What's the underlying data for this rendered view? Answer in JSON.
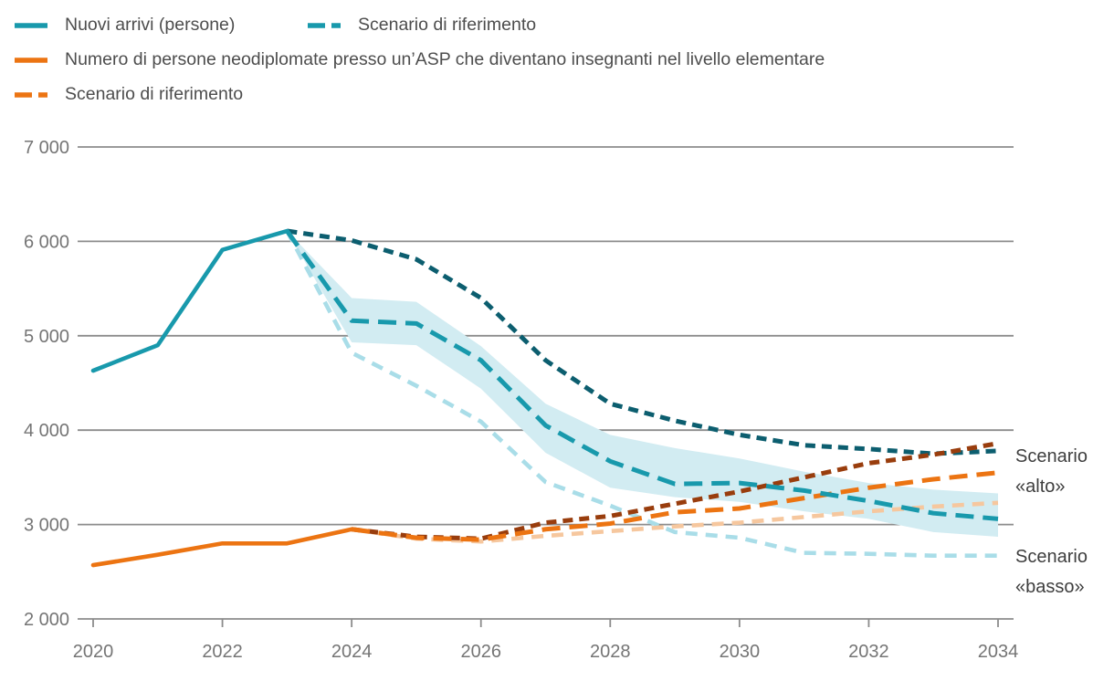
{
  "legend": {
    "items": [
      {
        "label": "Nuovi arrivi (persone)",
        "color": "#1899ac",
        "swatch": "solid"
      },
      {
        "label": "Scenario di riferimento",
        "color": "#1899ac",
        "swatch": "dashed"
      },
      {
        "label": "Numero di persone neodiplomate presso un’ASP che diventano insegnanti nel livello elementare",
        "color": "#ec7412",
        "swatch": "solid"
      },
      {
        "label": "Scenario di riferimento",
        "color": "#ec7412",
        "swatch": "dashed"
      }
    ]
  },
  "annotations": {
    "alto": "Scenario «alto»",
    "basso": "Scenario «basso»"
  },
  "chart_data": {
    "type": "line",
    "title": "",
    "xlabel": "",
    "ylabel": "",
    "xlim": [
      2020,
      2034
    ],
    "ylim": [
      2000,
      7000
    ],
    "grid": "horizontal",
    "yticks": [
      {
        "value": 2000,
        "label": "2 000"
      },
      {
        "value": 3000,
        "label": "3 000"
      },
      {
        "value": 4000,
        "label": "4 000"
      },
      {
        "value": 5000,
        "label": "5 000"
      },
      {
        "value": 6000,
        "label": "6 000"
      },
      {
        "value": 7000,
        "label": "7 000"
      }
    ],
    "xticks": [
      {
        "value": 2020,
        "label": "2020"
      },
      {
        "value": 2022,
        "label": "2022"
      },
      {
        "value": 2024,
        "label": "2024"
      },
      {
        "value": 2026,
        "label": "2026"
      },
      {
        "value": 2028,
        "label": "2028"
      },
      {
        "value": 2030,
        "label": "2030"
      },
      {
        "value": 2032,
        "label": "2032"
      },
      {
        "value": 2034,
        "label": "2034"
      }
    ],
    "band": {
      "name": "confidence-band-nuovi-arrivi",
      "color": "#d2ecf2",
      "x": [
        2023,
        2024,
        2025,
        2026,
        2027,
        2028,
        2029,
        2030,
        2031,
        2032,
        2033,
        2034
      ],
      "upper": [
        6110,
        5400,
        5360,
        4890,
        4280,
        3950,
        3810,
        3700,
        3560,
        3440,
        3370,
        3330
      ],
      "lower": [
        6110,
        4930,
        4900,
        4440,
        3760,
        3390,
        3290,
        3240,
        3140,
        3060,
        2920,
        2870
      ]
    },
    "series": [
      {
        "id": "nuovi-arrivi-scenario-basso",
        "name": "Nuovi arrivi – Scenario «basso»",
        "color": "#a9dde8",
        "style": "dotted-light",
        "x": [
          2023,
          2024,
          2025,
          2026,
          2027,
          2028,
          2029,
          2030,
          2031,
          2032,
          2033,
          2034
        ],
        "y": [
          6110,
          4820,
          4470,
          4090,
          3450,
          3200,
          2920,
          2860,
          2700,
          2690,
          2670,
          2670
        ]
      },
      {
        "id": "neodiplomate-scenario-basso",
        "name": "Neodiplomate – Scenario «basso»",
        "color": "#f6c79e",
        "style": "dotted-light",
        "x": [
          2024,
          2025,
          2026,
          2027,
          2028,
          2029,
          2030,
          2031,
          2032,
          2033,
          2034
        ],
        "y": [
          2950,
          2850,
          2820,
          2880,
          2930,
          2980,
          3020,
          3080,
          3140,
          3190,
          3230
        ]
      },
      {
        "id": "nuovi-arrivi-scenario-alto",
        "name": "Nuovi arrivi – Scenario «alto»",
        "color": "#0c5e6f",
        "style": "dotted",
        "x": [
          2023,
          2024,
          2025,
          2026,
          2027,
          2028,
          2029,
          2030,
          2031,
          2032,
          2033,
          2034
        ],
        "y": [
          6110,
          6010,
          5810,
          5400,
          4740,
          4280,
          4100,
          3950,
          3840,
          3800,
          3750,
          3780
        ]
      },
      {
        "id": "neodiplomate-scenario-alto",
        "name": "Neodiplomate – Scenario «alto»",
        "color": "#993d0d",
        "style": "dotted",
        "x": [
          2024,
          2025,
          2026,
          2027,
          2028,
          2029,
          2030,
          2031,
          2032,
          2033,
          2034
        ],
        "y": [
          2950,
          2870,
          2850,
          3020,
          3090,
          3220,
          3350,
          3500,
          3650,
          3740,
          3860
        ]
      },
      {
        "id": "neodiplomate-scenario-riferimento",
        "name": "Scenario di riferimento",
        "color": "#ec7412",
        "style": "dashed",
        "x": [
          2024,
          2025,
          2026,
          2027,
          2028,
          2029,
          2030,
          2031,
          2032,
          2033,
          2034
        ],
        "y": [
          2950,
          2860,
          2840,
          2950,
          3010,
          3130,
          3170,
          3280,
          3390,
          3480,
          3550
        ]
      },
      {
        "id": "nuovi-arrivi-scenario-riferimento",
        "name": "Scenario di riferimento",
        "color": "#1899ac",
        "style": "dashed",
        "x": [
          2023,
          2024,
          2025,
          2026,
          2027,
          2028,
          2029,
          2030,
          2031,
          2032,
          2033,
          2034
        ],
        "y": [
          6110,
          5160,
          5130,
          4740,
          4050,
          3670,
          3430,
          3440,
          3360,
          3250,
          3120,
          3060
        ]
      },
      {
        "id": "nuovi-arrivi",
        "name": "Nuovi arrivi (persone)",
        "color": "#1899ac",
        "style": "solid",
        "x": [
          2020,
          2021,
          2022,
          2023
        ],
        "y": [
          4630,
          4900,
          5910,
          6110
        ]
      },
      {
        "id": "neodiplomate",
        "name": "Numero di persone neodiplomate presso un’ASP che diventano insegnanti nel livello elementare",
        "color": "#ec7412",
        "style": "solid",
        "x": [
          2020,
          2021,
          2022,
          2023,
          2024
        ],
        "y": [
          2570,
          2680,
          2800,
          2800,
          2950
        ]
      }
    ]
  }
}
